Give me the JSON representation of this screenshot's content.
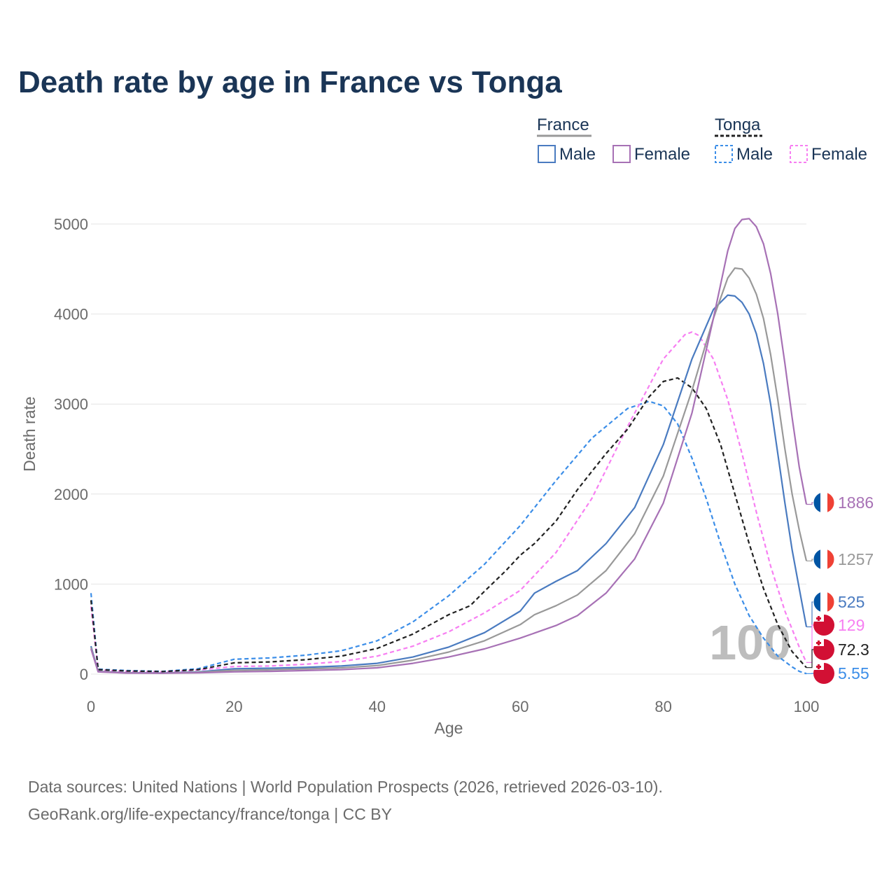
{
  "colors": {
    "france_male": "#4a7bc0",
    "france_female": "#a771b5",
    "france_total": "#999999",
    "tonga_male": "#3c8ee8",
    "tonga_female": "#f77ff2",
    "tonga_total": "#222222",
    "france_flag_blue": "#0055a4",
    "france_flag_red": "#ef4135",
    "tonga_flag_red": "#d21034"
  },
  "chart_data": {
    "type": "line",
    "title": "Death rate by age in France vs Tonga",
    "xlabel": "Age",
    "ylabel": "Death rate",
    "xlim": [
      0,
      100
    ],
    "ylim": [
      0,
      5000
    ],
    "xticks": [
      "0",
      "20",
      "40",
      "60",
      "80",
      "100"
    ],
    "yticks": [
      "0",
      "1000",
      "2000",
      "3000",
      "4000",
      "5000"
    ],
    "xtick_values": [
      0,
      20,
      40,
      60,
      80,
      100
    ],
    "ytick_values": [
      0,
      1000,
      2000,
      3000,
      4000,
      5000
    ],
    "watermark": "100",
    "legend": {
      "groups": [
        {
          "name": "France",
          "items": [
            "Male",
            "Female"
          ]
        },
        {
          "name": "Tonga",
          "items": [
            "Male",
            "Female"
          ]
        }
      ]
    },
    "series": [
      {
        "key": "france_male",
        "name": "France Male",
        "country": "France",
        "dashed": false,
        "end_label": "525",
        "points": [
          [
            0,
            310
          ],
          [
            1,
            30
          ],
          [
            5,
            15
          ],
          [
            10,
            12
          ],
          [
            15,
            25
          ],
          [
            20,
            60
          ],
          [
            25,
            65
          ],
          [
            30,
            75
          ],
          [
            35,
            90
          ],
          [
            40,
            120
          ],
          [
            45,
            190
          ],
          [
            50,
            300
          ],
          [
            55,
            460
          ],
          [
            60,
            700
          ],
          [
            62,
            900
          ],
          [
            65,
            1030
          ],
          [
            68,
            1150
          ],
          [
            72,
            1450
          ],
          [
            76,
            1850
          ],
          [
            80,
            2550
          ],
          [
            84,
            3500
          ],
          [
            87,
            4050
          ],
          [
            89,
            4210
          ],
          [
            90,
            4200
          ],
          [
            91,
            4130
          ],
          [
            92,
            4000
          ],
          [
            93,
            3780
          ],
          [
            94,
            3450
          ],
          [
            95,
            3000
          ],
          [
            96,
            2450
          ],
          [
            97,
            1900
          ],
          [
            98,
            1380
          ],
          [
            99,
            950
          ],
          [
            100,
            525
          ]
        ]
      },
      {
        "key": "france_female",
        "name": "France Female",
        "country": "France",
        "dashed": false,
        "end_label": "1886",
        "points": [
          [
            0,
            280
          ],
          [
            1,
            25
          ],
          [
            5,
            12
          ],
          [
            10,
            10
          ],
          [
            15,
            15
          ],
          [
            20,
            25
          ],
          [
            25,
            30
          ],
          [
            30,
            40
          ],
          [
            35,
            50
          ],
          [
            40,
            70
          ],
          [
            45,
            120
          ],
          [
            50,
            190
          ],
          [
            55,
            280
          ],
          [
            60,
            400
          ],
          [
            65,
            540
          ],
          [
            68,
            650
          ],
          [
            72,
            900
          ],
          [
            76,
            1280
          ],
          [
            80,
            1900
          ],
          [
            84,
            2900
          ],
          [
            87,
            3950
          ],
          [
            89,
            4700
          ],
          [
            90,
            4950
          ],
          [
            91,
            5050
          ],
          [
            92,
            5060
          ],
          [
            93,
            4970
          ],
          [
            94,
            4780
          ],
          [
            95,
            4450
          ],
          [
            96,
            4000
          ],
          [
            97,
            3450
          ],
          [
            98,
            2850
          ],
          [
            99,
            2300
          ],
          [
            100,
            1886
          ]
        ]
      },
      {
        "key": "france_total",
        "name": "France Total",
        "country": "France",
        "dashed": false,
        "end_label": "1257",
        "points": [
          [
            0,
            295
          ],
          [
            1,
            28
          ],
          [
            5,
            14
          ],
          [
            10,
            11
          ],
          [
            15,
            20
          ],
          [
            20,
            42
          ],
          [
            25,
            48
          ],
          [
            30,
            58
          ],
          [
            35,
            70
          ],
          [
            40,
            95
          ],
          [
            45,
            155
          ],
          [
            50,
            245
          ],
          [
            55,
            370
          ],
          [
            60,
            550
          ],
          [
            62,
            660
          ],
          [
            65,
            760
          ],
          [
            68,
            880
          ],
          [
            72,
            1150
          ],
          [
            76,
            1560
          ],
          [
            80,
            2200
          ],
          [
            84,
            3150
          ],
          [
            87,
            3950
          ],
          [
            89,
            4400
          ],
          [
            90,
            4510
          ],
          [
            91,
            4500
          ],
          [
            92,
            4400
          ],
          [
            93,
            4220
          ],
          [
            94,
            3950
          ],
          [
            95,
            3550
          ],
          [
            96,
            3050
          ],
          [
            97,
            2500
          ],
          [
            98,
            2000
          ],
          [
            99,
            1600
          ],
          [
            100,
            1257
          ]
        ]
      },
      {
        "key": "tonga_male",
        "name": "Tonga Male",
        "country": "Tonga",
        "dashed": true,
        "end_label": "5.55",
        "points": [
          [
            0,
            900
          ],
          [
            1,
            55
          ],
          [
            5,
            40
          ],
          [
            10,
            30
          ],
          [
            15,
            60
          ],
          [
            20,
            165
          ],
          [
            25,
            180
          ],
          [
            30,
            210
          ],
          [
            35,
            260
          ],
          [
            40,
            370
          ],
          [
            45,
            580
          ],
          [
            50,
            870
          ],
          [
            55,
            1220
          ],
          [
            60,
            1650
          ],
          [
            65,
            2150
          ],
          [
            70,
            2620
          ],
          [
            75,
            2950
          ],
          [
            78,
            3030
          ],
          [
            80,
            2980
          ],
          [
            82,
            2780
          ],
          [
            84,
            2400
          ],
          [
            86,
            1950
          ],
          [
            88,
            1450
          ],
          [
            90,
            1000
          ],
          [
            92,
            650
          ],
          [
            94,
            400
          ],
          [
            96,
            200
          ],
          [
            98,
            80
          ],
          [
            99,
            30
          ],
          [
            100,
            5.55
          ]
        ]
      },
      {
        "key": "tonga_female",
        "name": "Tonga Female",
        "country": "Tonga",
        "dashed": true,
        "end_label": "129",
        "points": [
          [
            0,
            750
          ],
          [
            1,
            45
          ],
          [
            5,
            30
          ],
          [
            10,
            25
          ],
          [
            15,
            45
          ],
          [
            20,
            85
          ],
          [
            25,
            90
          ],
          [
            30,
            110
          ],
          [
            35,
            140
          ],
          [
            40,
            200
          ],
          [
            45,
            310
          ],
          [
            50,
            470
          ],
          [
            55,
            680
          ],
          [
            60,
            930
          ],
          [
            65,
            1350
          ],
          [
            70,
            1950
          ],
          [
            75,
            2750
          ],
          [
            80,
            3500
          ],
          [
            83,
            3770
          ],
          [
            84,
            3800
          ],
          [
            85,
            3760
          ],
          [
            87,
            3500
          ],
          [
            89,
            3050
          ],
          [
            91,
            2450
          ],
          [
            93,
            1800
          ],
          [
            95,
            1200
          ],
          [
            97,
            700
          ],
          [
            99,
            300
          ],
          [
            100,
            129
          ]
        ]
      },
      {
        "key": "tonga_total",
        "name": "Tonga Total",
        "country": "Tonga",
        "dashed": true,
        "end_label": "72.3",
        "points": [
          [
            0,
            820
          ],
          [
            1,
            50
          ],
          [
            5,
            35
          ],
          [
            10,
            28
          ],
          [
            15,
            50
          ],
          [
            20,
            125
          ],
          [
            25,
            135
          ],
          [
            30,
            160
          ],
          [
            35,
            200
          ],
          [
            40,
            285
          ],
          [
            45,
            445
          ],
          [
            50,
            660
          ],
          [
            53,
            760
          ],
          [
            55,
            920
          ],
          [
            58,
            1150
          ],
          [
            60,
            1320
          ],
          [
            62,
            1450
          ],
          [
            65,
            1700
          ],
          [
            68,
            2050
          ],
          [
            70,
            2250
          ],
          [
            72,
            2450
          ],
          [
            75,
            2720
          ],
          [
            78,
            3080
          ],
          [
            80,
            3250
          ],
          [
            82,
            3290
          ],
          [
            84,
            3180
          ],
          [
            86,
            2950
          ],
          [
            88,
            2550
          ],
          [
            90,
            2000
          ],
          [
            92,
            1450
          ],
          [
            94,
            950
          ],
          [
            96,
            550
          ],
          [
            98,
            250
          ],
          [
            100,
            72.3
          ]
        ]
      }
    ]
  },
  "source": {
    "line1": "Data sources: United Nations | World Population Prospects (2026, retrieved 2026-03-10).",
    "line2": "GeoRank.org/life-expectancy/france/tonga | CC BY"
  }
}
